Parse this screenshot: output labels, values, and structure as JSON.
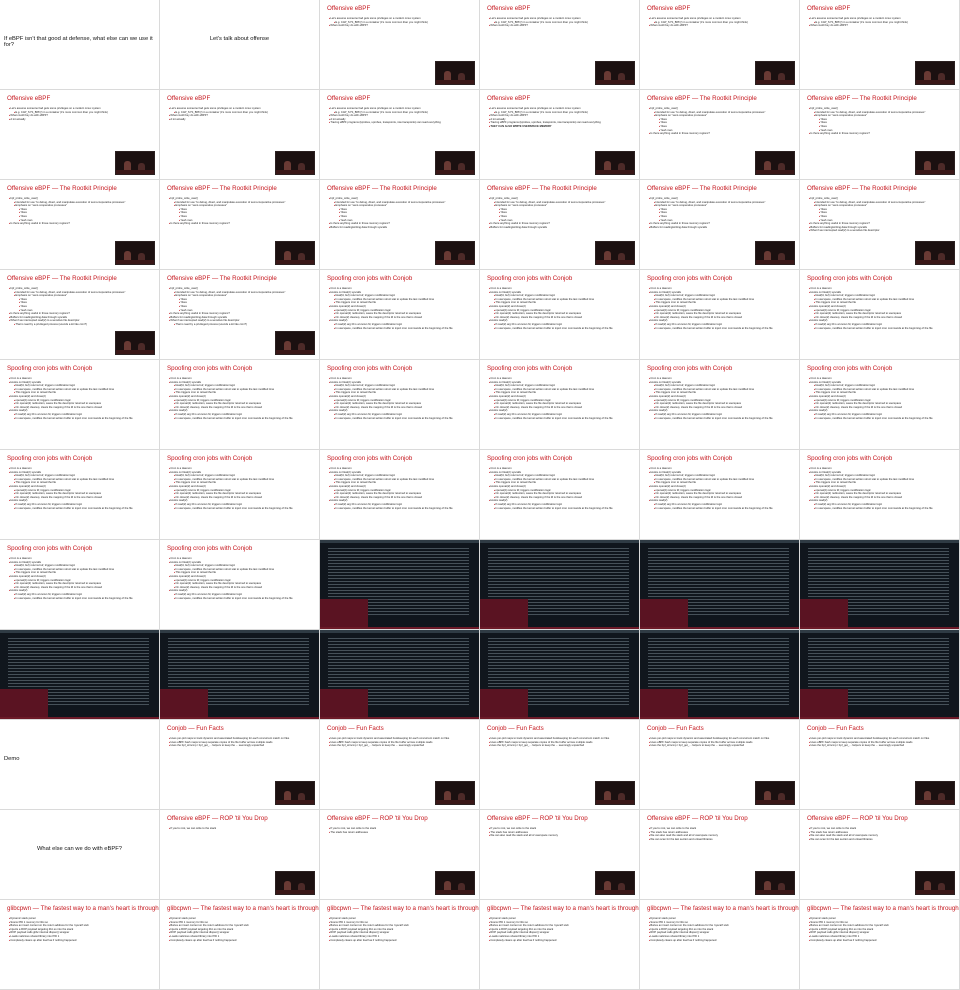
{
  "deck": {
    "opening_question": "If eBPF isn't that good at defense, what else can we use it for?",
    "offense_intro": "Let's talk about offense",
    "demo_label": "Demo",
    "what_else": "What else can we do with eBPF?"
  },
  "titles": {
    "offensive_ebpf": "Offensive eBPF",
    "rootkit_principle": "Offensive eBPF — The Rootkit Principle",
    "spoofing_cron": "Spoofing cron jobs with Conjob",
    "conjob_fun_facts": "Conjob — Fun Facts",
    "rop_til_you_drop": "Offensive eBPF — ROP 'til You Drop",
    "glibcpwn": "glibcpwn — The fastest way to a man's heart is through his init daemon"
  },
  "bullets": {
    "offensive": [
      {
        "text": "Let's assume someone had gets some privileges on a modern Linux system",
        "level": 0
      },
      {
        "text": "E.g. CAP_SYS_BPF(!) in a container (it's more common than you might think)",
        "level": 1
      },
      {
        "text": "What could they do with eBPF?",
        "level": 0
      },
      {
        "text": "A lot actually",
        "level": 0
      },
      {
        "text": "Tracing eBPF programs (kprobes, uprobes, tracepoints, raw tracepoints) can read everything",
        "level": 0
      },
      {
        "text": "THEY CAN ALSO WRITE USERSPACE MEMORY",
        "level": 0,
        "bold": true
      }
    ],
    "rootkit": [
      {
        "text": "bpf_probe_write_user()",
        "level": 0
      },
      {
        "text": "Intended for use \"to debug, divert, and manipulate execution of semi-cooperative processes\"",
        "level": 1
      },
      {
        "text": "Emphasis on \"semi-cooperative processes\"",
        "level": 1
      },
      {
        "text": "Yikes",
        "level": 2
      },
      {
        "text": "Yikes",
        "level": 2
      },
      {
        "text": "Yikes",
        "level": 2
      },
      {
        "text": "Yeah man",
        "level": 2
      },
      {
        "text": "Is there anything useful in those memory regions?",
        "level": 0
      },
      {
        "text": "Buffers for reading/writing data through syscalls",
        "level": 0
      },
      {
        "text": "What if we intercepted read(2) to a sensitive file descriptor",
        "level": 0
      },
      {
        "text": "That is read by a privileged process (sounds a lot like cron?)",
        "level": 1
      }
    ],
    "conjob": [
      {
        "text": "Cron is a daemon",
        "level": 0
      },
      {
        "text": "Hooks on fstat(2) syscalls",
        "level": 0
      },
      {
        "text": "fstat(fd, buf) returns buf; triggers modification logic",
        "level": 1
      },
      {
        "text": "In userspace, modifies the kernel-written struct stat to update the last modified time",
        "level": 1
      },
      {
        "text": "This triggers cron to reload the file",
        "level": 1
      },
      {
        "text": "Hooks openat(2) and close(2)",
        "level": 0
      },
      {
        "text": "openat(2) returns fd; triggers modification logic",
        "level": 1
      },
      {
        "text": "On openat(2) redirection, saves the file descriptor returned to userspace",
        "level": 1
      },
      {
        "text": "On close(2) cleanup, clears the mapping if the fd is the one that is closed",
        "level": 1
      },
      {
        "text": "Hooks read(2)",
        "level": 0
      },
      {
        "text": "If read(2) arg fd is a known fd, triggers modification logic",
        "level": 1
      },
      {
        "text": "In userspace, modifies the kernel-written buffer to inject cron commands at the beginning of the file",
        "level": 1
      }
    ],
    "fun_facts": [
      {
        "text": "Uses per-pid maps to track dynamic and associated bookkeeping for each concurrent match on files",
        "level": 0
      },
      {
        "text": "Uses eBPF hash maps to keep separate copies of the file buffer across multiple reads",
        "level": 0
      },
      {
        "text": "Uses the bpf_strncmp / bpf_get_... helpers to keep the ... seemingly unpatched",
        "level": 0
      }
    ],
    "rop": [
      {
        "text": "If you're root, we can write to the stack",
        "level": 0
      },
      {
        "text": "The stack has return addresses",
        "level": 0
      },
      {
        "text": "We can also read the stack and all of userspace memory",
        "level": 0
      },
      {
        "text": "We can scan for the last section and unload libraries",
        "level": 0
      }
    ],
    "glibc": [
      {
        "text": "Dynamic stack pwner",
        "level": 0
      },
      {
        "text": "Scans PID 1 memory for libc.so",
        "level": 0
      },
      {
        "text": "Buries an insert context on the return address for the 'syscall' stub",
        "level": 0
      },
      {
        "text": "Injects a ROP payload targeting libc.so into the stack",
        "level": 0
      },
      {
        "text": "ROP payload calls glibc internal dlopen() wrapper",
        "level": 0
      },
      {
        "text": "Loads malicious shared library into PID 1",
        "level": 0
      },
      {
        "text": "Completely cleans up after itself as if nothing happened",
        "level": 0
      }
    ]
  },
  "colors": {
    "title_red": "#c5161d",
    "terminal_bg": "#10161d",
    "terminal_accent": "#5a1322"
  }
}
